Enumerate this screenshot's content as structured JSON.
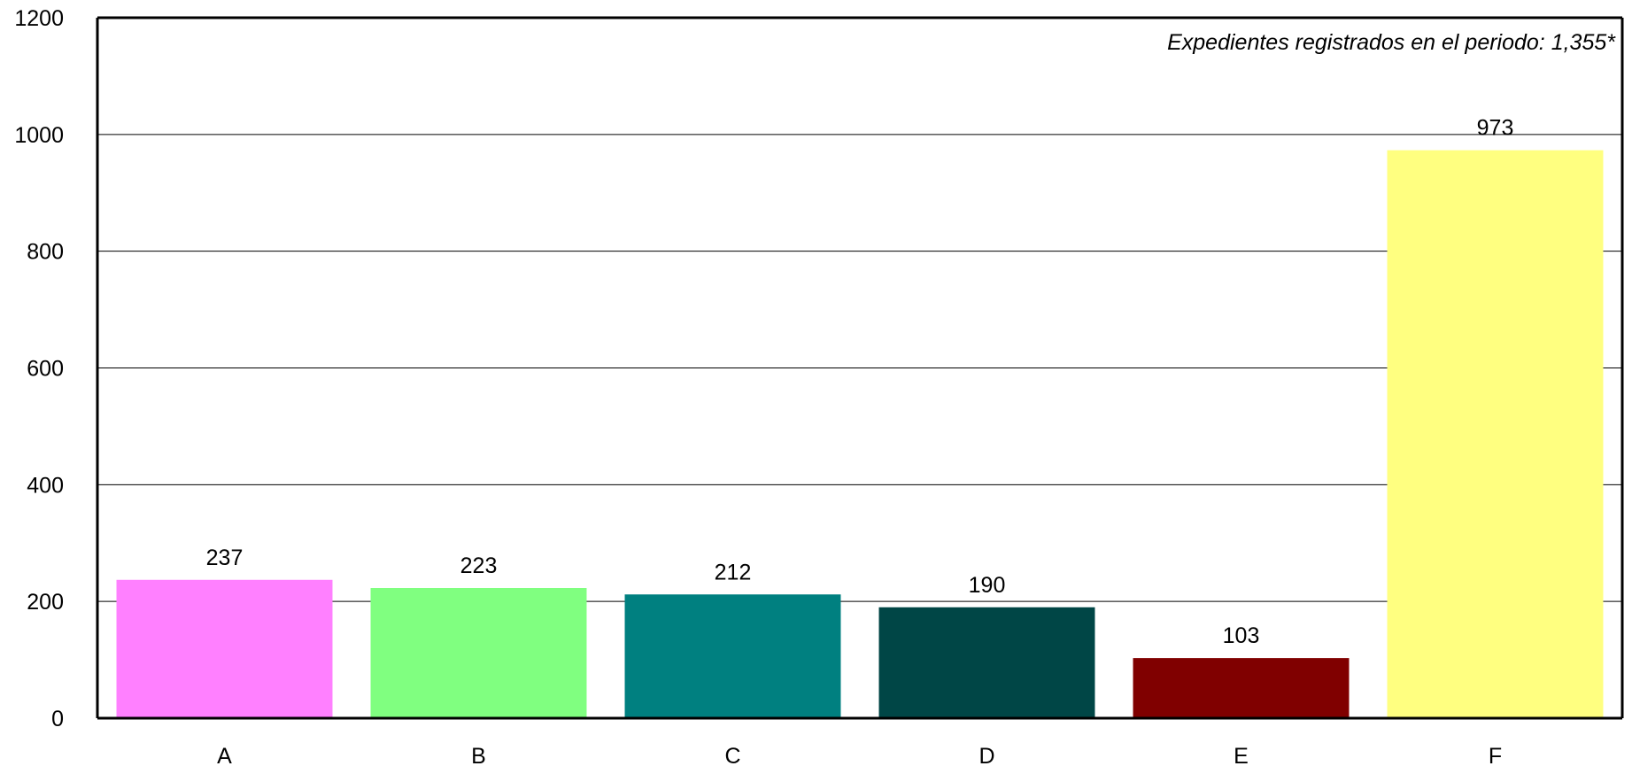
{
  "chart_data": {
    "type": "bar",
    "title": "",
    "xlabel": "",
    "ylabel": "",
    "categories": [
      "A",
      "B",
      "C",
      "D",
      "E",
      "F"
    ],
    "values": [
      237,
      223,
      212,
      190,
      103,
      973
    ],
    "colors": [
      "#FF80FF",
      "#80FF80",
      "#008080",
      "#004646",
      "#800000",
      "#FFFF80"
    ],
    "ylim": [
      0,
      1200
    ],
    "yticks": [
      0,
      200,
      400,
      600,
      800,
      1000,
      1200
    ],
    "grid": true,
    "legend": "none",
    "data_labels": [
      "237",
      "223",
      "212",
      "190",
      "103",
      "973"
    ],
    "annotation": "Expedientes registrados en el periodo:  1,355*"
  }
}
